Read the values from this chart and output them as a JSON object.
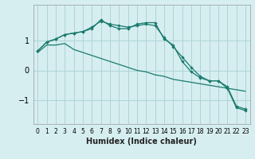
{
  "xlabel": "Humidex (Indice chaleur)",
  "background_color": "#d6eef0",
  "grid_color": "#aed4d8",
  "line_color": "#1a7a6e",
  "x_values": [
    0,
    1,
    2,
    3,
    4,
    5,
    6,
    7,
    8,
    9,
    10,
    11,
    12,
    13,
    14,
    15,
    16,
    17,
    18,
    19,
    20,
    21,
    22,
    23
  ],
  "line1": [
    0.65,
    0.95,
    1.05,
    1.2,
    1.25,
    1.3,
    1.45,
    1.65,
    1.55,
    1.5,
    1.45,
    1.5,
    1.55,
    1.5,
    1.1,
    0.8,
    0.45,
    0.1,
    -0.2,
    -0.35,
    -0.35,
    -0.55,
    -1.2,
    -1.3
  ],
  "line2": [
    0.65,
    0.95,
    1.05,
    1.2,
    1.25,
    1.3,
    1.4,
    1.7,
    1.5,
    1.4,
    1.4,
    1.55,
    1.6,
    1.6,
    1.05,
    0.85,
    0.3,
    -0.05,
    -0.25,
    -0.35,
    -0.35,
    -0.6,
    -1.25,
    -1.35
  ],
  "line3": [
    0.6,
    0.85,
    0.85,
    0.9,
    0.7,
    0.6,
    0.5,
    0.4,
    0.3,
    0.2,
    0.1,
    0.0,
    -0.05,
    -0.15,
    -0.2,
    -0.3,
    -0.35,
    -0.4,
    -0.45,
    -0.5,
    -0.55,
    -0.6,
    -0.65,
    -0.7
  ],
  "ylim": [
    -1.8,
    2.2
  ],
  "yticks": [
    -1,
    0,
    1
  ],
  "xlim": [
    -0.5,
    23.5
  ]
}
